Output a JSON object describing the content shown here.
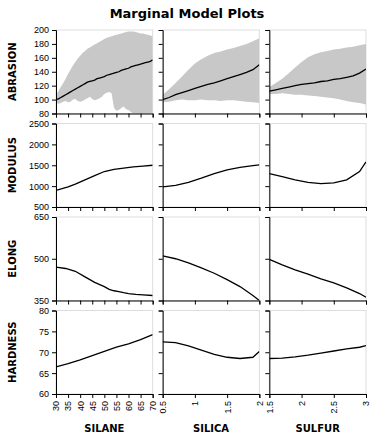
{
  "chart_data": {
    "type": "line",
    "title": "Marginal Model Plots",
    "color": "#000000",
    "band_color": "#c8c8c8",
    "cols": [
      {
        "label": "SILANE",
        "xlim": [
          30,
          70
        ],
        "xticks": [
          30,
          35,
          40,
          45,
          50,
          55,
          60,
          65,
          70
        ]
      },
      {
        "label": "SILICA",
        "xlim": [
          0.5,
          2.0
        ],
        "xticks": [
          0.5,
          1,
          1.5,
          2
        ]
      },
      {
        "label": "SULFUR",
        "xlim": [
          1.5,
          3.0
        ],
        "xticks": [
          1.5,
          2,
          2.5,
          3
        ]
      }
    ],
    "rows": [
      {
        "label": "ABRASION",
        "ylim": [
          80,
          200
        ],
        "yticks": [
          80,
          100,
          120,
          140,
          160,
          180,
          200
        ],
        "panels": [
          {
            "x": [
              30,
              31,
              32,
              33,
              34,
              35,
              36,
              37,
              38,
              39,
              40,
              41,
              42,
              43,
              44,
              45,
              46,
              47,
              48,
              49,
              50,
              51,
              52,
              53,
              54,
              55,
              56,
              57,
              58,
              59,
              60,
              61,
              62,
              63,
              64,
              65,
              66,
              67,
              68,
              69,
              70
            ],
            "values": [
              100,
              101,
              103,
              105,
              107,
              109,
              111,
              113,
              115,
              117,
              119,
              121,
              123,
              125,
              126,
              127,
              128,
              130,
              131,
              132,
              133,
              135,
              136,
              137,
              138,
              139,
              140,
              142,
              143,
              144,
              145,
              147,
              148,
              149,
              150,
              151,
              152,
              153,
              154,
              155,
              157
            ],
            "lower": [
              95,
              94,
              95,
              97,
              98,
              96,
              97,
              100,
              101,
              98,
              97,
              98,
              100,
              102,
              104,
              101,
              99,
              100,
              102,
              104,
              108,
              110,
              111,
              109,
              88,
              84,
              85,
              88,
              90,
              86,
              85,
              82,
              80,
              80,
              80,
              80,
              80,
              80,
              80,
              80,
              80
            ],
            "upper": [
              107,
              112,
              118,
              124,
              130,
              137,
              143,
              149,
              154,
              159,
              163,
              167,
              170,
              173,
              175,
              177,
              179,
              181,
              183,
              185,
              187,
              189,
              190,
              191,
              192,
              193,
              194,
              195,
              196,
              197,
              198,
              198,
              198,
              197,
              196,
              195,
              195,
              194,
              193,
              192,
              191
            ]
          },
          {
            "x": [
              0.5,
              0.6,
              0.7,
              0.8,
              0.9,
              1.0,
              1.1,
              1.2,
              1.3,
              1.4,
              1.5,
              1.6,
              1.7,
              1.8,
              1.9,
              2.0
            ],
            "values": [
              100,
              103,
              107,
              110,
              113,
              116,
              119,
              122,
              124,
              127,
              130,
              133,
              136,
              139,
              143,
              150
            ],
            "lower": [
              96,
              97,
              99,
              100,
              99,
              99,
              100,
              99,
              99,
              98,
              99,
              99,
              98,
              97,
              96,
              95
            ],
            "upper": [
              107,
              115,
              124,
              133,
              143,
              152,
              158,
              163,
              167,
              169,
              172,
              174,
              177,
              180,
              184,
              188
            ]
          },
          {
            "x": [
              1.5,
              1.6,
              1.7,
              1.8,
              1.9,
              2.0,
              2.1,
              2.2,
              2.3,
              2.4,
              2.5,
              2.6,
              2.7,
              2.8,
              2.9,
              3.0
            ],
            "values": [
              112,
              114,
              116,
              118,
              120,
              122,
              123,
              124,
              126,
              127,
              129,
              130,
              132,
              134,
              138,
              144
            ],
            "lower": [
              108,
              108,
              109,
              108,
              107,
              107,
              106,
              105,
              104,
              103,
              102,
              100,
              98,
              96,
              95,
              93
            ],
            "upper": [
              118,
              124,
              130,
              138,
              146,
              154,
              161,
              165,
              168,
              170,
              172,
              173,
              175,
              176,
              178,
              180
            ]
          }
        ]
      },
      {
        "label": "MODULUS",
        "ylim": [
          500,
          2500
        ],
        "yticks": [
          500,
          1000,
          1500,
          2000,
          2500
        ],
        "panels": [
          {
            "x": [
              30,
              35,
              38,
              42,
              46,
              50,
              54,
              58,
              62,
              66,
              70
            ],
            "values": [
              900,
              980,
              1050,
              1150,
              1250,
              1350,
              1400,
              1430,
              1460,
              1480,
              1500
            ]
          },
          {
            "x": [
              0.5,
              0.7,
              0.9,
              1.1,
              1.3,
              1.5,
              1.7,
              1.9,
              2.0
            ],
            "values": [
              980,
              1020,
              1090,
              1190,
              1300,
              1390,
              1450,
              1490,
              1510
            ]
          },
          {
            "x": [
              1.5,
              1.7,
              1.9,
              2.1,
              2.3,
              2.5,
              2.7,
              2.9,
              3.0
            ],
            "values": [
              1300,
              1230,
              1150,
              1090,
              1060,
              1080,
              1150,
              1350,
              1580
            ]
          }
        ]
      },
      {
        "label": "ELONG",
        "ylim": [
          350,
          650
        ],
        "yticks": [
          350,
          500,
          650
        ],
        "panels": [
          {
            "x": [
              30,
              34,
              38,
              42,
              46,
              50,
              52,
              54,
              56,
              58,
              60,
              63,
              66,
              70
            ],
            "values": [
              470,
              465,
              455,
              435,
              415,
              400,
              390,
              385,
              382,
              378,
              375,
              372,
              370,
              368
            ]
          },
          {
            "x": [
              0.5,
              0.7,
              0.9,
              1.1,
              1.3,
              1.5,
              1.7,
              1.9,
              2.0
            ],
            "values": [
              510,
              500,
              485,
              467,
              448,
              425,
              400,
              368,
              350
            ]
          },
          {
            "x": [
              1.5,
              1.7,
              1.9,
              2.1,
              2.3,
              2.5,
              2.7,
              2.9,
              3.0
            ],
            "values": [
              498,
              478,
              460,
              445,
              428,
              413,
              395,
              375,
              362
            ]
          }
        ]
      },
      {
        "label": "HARDNESS",
        "ylim": [
          60,
          80
        ],
        "yticks": [
          60,
          65,
          70,
          75,
          80
        ],
        "panels": [
          {
            "x": [
              30,
              35,
              40,
              45,
              50,
              55,
              60,
              65,
              70
            ],
            "values": [
              66.5,
              67.3,
              68.2,
              69.2,
              70.2,
              71.2,
              72.0,
              73.0,
              74.2
            ]
          },
          {
            "x": [
              0.5,
              0.7,
              0.9,
              1.1,
              1.3,
              1.5,
              1.7,
              1.9,
              2.0
            ],
            "values": [
              72.5,
              72.3,
              71.5,
              70.5,
              69.5,
              68.8,
              68.5,
              68.8,
              70.2
            ]
          },
          {
            "x": [
              1.5,
              1.7,
              1.9,
              2.1,
              2.3,
              2.5,
              2.7,
              2.9,
              3.0
            ],
            "values": [
              68.5,
              68.6,
              68.9,
              69.3,
              69.8,
              70.3,
              70.8,
              71.2,
              71.6
            ]
          }
        ]
      }
    ]
  }
}
